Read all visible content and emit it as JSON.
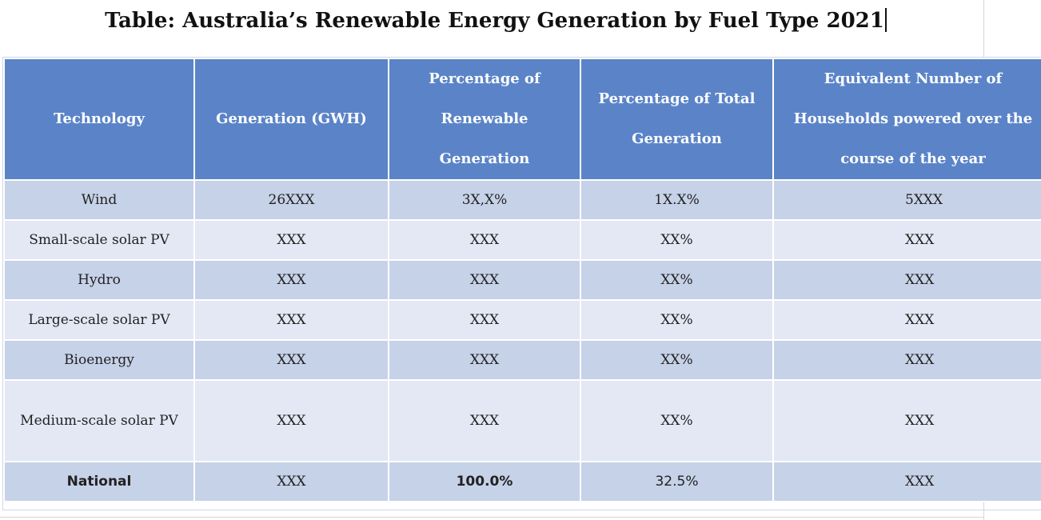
{
  "title": "Table: Australia’s Renewable Energy Generation by Fuel Type 2021",
  "table": {
    "headers": [
      "Technology",
      "Generation  (GWH)",
      "Percentage of Renewable Generation",
      "Percentage of Total Generation",
      "Equivalent Number of Households powered over the course of the year"
    ],
    "rows": [
      [
        "Wind",
        "26XXX",
        "3X,X%",
        "1X.X%",
        "5XXX"
      ],
      [
        "Small-scale solar PV",
        "XXX",
        "XXX",
        "XX%",
        "XXX"
      ],
      [
        "Hydro",
        "XXX",
        "XXX",
        "XX%",
        "XXX"
      ],
      [
        "Large-scale solar PV",
        "XXX",
        "XXX",
        "XX%",
        "XXX"
      ],
      [
        "Bioenergy",
        "XXX",
        "XXX",
        "XX%",
        "XXX"
      ],
      [
        "Medium-scale solar PV",
        "XXX",
        "XXX",
        "XX%",
        "XXX"
      ],
      [
        "National",
        "XXX",
        "100.0%",
        "32.5%",
        "XXX"
      ]
    ]
  },
  "colors": {
    "header_bg": "#5b84c8",
    "row_dark": "#c6d2e8",
    "row_light": "#e3e8f4"
  }
}
